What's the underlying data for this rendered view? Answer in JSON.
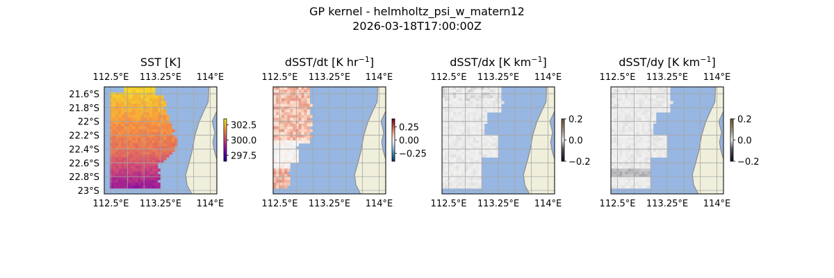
{
  "figure": {
    "title_line1": "GP kernel - helmholtz_psi_w_matern12",
    "title_line2": "2026-03-18T17:00:00Z"
  },
  "colors": {
    "ocean": "#97b6e1",
    "land": "#efefdb",
    "coast": "#8c8c8c",
    "grid": "#a6a6a6"
  },
  "map_extent": {
    "lon": [
      112.4,
      114.1
    ],
    "lat": [
      -23.05,
      -21.5
    ]
  },
  "chart_data": [
    {
      "type": "heatmap",
      "title": "SST [K]",
      "title_sup": "",
      "title_tail": "",
      "variable": "SST",
      "colormap": "plasma",
      "clim": [
        296.5,
        303.5
      ],
      "colorbar_ticks": [
        "302.5",
        "300.0",
        "297.5"
      ],
      "x_ticks_top": [
        "112.5°E",
        "113.25°E",
        "114°E"
      ],
      "x_ticks_bottom": [
        "112.5°E",
        "113.25°E",
        "114°E"
      ],
      "y_ticks": [
        "21.6°S",
        "21.8°S",
        "22°S",
        "22.2°S",
        "22.4°S",
        "22.6°S",
        "22.8°S",
        "23°S"
      ]
    },
    {
      "type": "heatmap",
      "title": "dSST/dt [K hr",
      "title_sup": "−1",
      "title_tail": "]",
      "variable": "dSST/dt",
      "colormap": "RdBu_r",
      "clim": [
        -0.4,
        0.4
      ],
      "colorbar_ticks": [
        "0.25",
        "0.00",
        "−0.25"
      ],
      "x_ticks_top": [
        "112.5°E",
        "113.25°E",
        "114°E"
      ],
      "x_ticks_bottom": [
        "112.5°E",
        "113.25°E",
        "114°E"
      ],
      "y_ticks": []
    },
    {
      "type": "heatmap",
      "title": "dSST/dx [K km",
      "title_sup": "−1",
      "title_tail": "]",
      "variable": "dSST/dx",
      "colormap": "gray-diverging",
      "clim": [
        -0.2,
        0.2
      ],
      "colorbar_ticks": [
        "0.2",
        "0.0",
        "−0.2"
      ],
      "x_ticks_top": [
        "112.5°E",
        "113.25°E",
        "114°E"
      ],
      "x_ticks_bottom": [
        "112.5°E",
        "113.25°E",
        "114°E"
      ],
      "y_ticks": []
    },
    {
      "type": "heatmap",
      "title": "dSST/dy [K km",
      "title_sup": "−1",
      "title_tail": "]",
      "variable": "dSST/dy",
      "colormap": "gray-diverging",
      "clim": [
        -0.2,
        0.2
      ],
      "colorbar_ticks": [
        "0.2",
        "0.0",
        "−0.2"
      ],
      "x_ticks_top": [
        "112.5°E",
        "113.25°E",
        "114°E"
      ],
      "x_ticks_bottom": [
        "112.5°E",
        "113.25°E",
        "114°E"
      ],
      "y_ticks": []
    }
  ]
}
